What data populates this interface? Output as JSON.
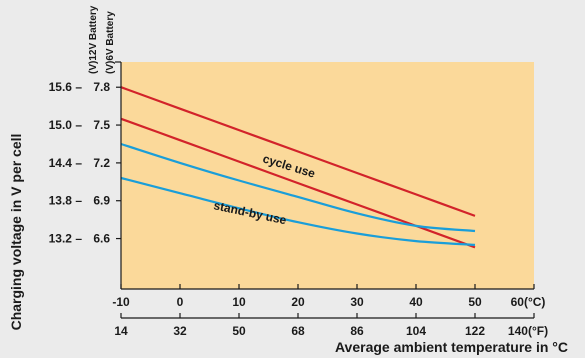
{
  "chart_data": {
    "type": "line",
    "xlabel": "Average ambient temperature in °C",
    "ylabel": "Charging voltage in V per cell",
    "y_scale_titles": [
      "(V)12V Battery",
      "(V)6V Battery"
    ],
    "x_celsius_ticks": [
      "-10",
      "0",
      "10",
      "20",
      "30",
      "40",
      "50",
      "60(°C)"
    ],
    "x_fahrenheit_ticks": [
      "14",
      "32",
      "50",
      "68",
      "86",
      "104",
      "122",
      "140(°F)"
    ],
    "y12_ticks": [
      "15.6 –",
      "15.0 –",
      "14.4 –",
      "13.8 –",
      "13.2 –"
    ],
    "y6_ticks": [
      "7.8",
      "7.5",
      "7.2",
      "6.9",
      "6.6"
    ],
    "xlim": [
      -10,
      60
    ],
    "ylim_6v": [
      6.2,
      8.0
    ],
    "annotations": [
      "cycle use",
      "stand-by use"
    ],
    "colors": {
      "plot_bg": "#fbd99a",
      "cycle": "#d2232a",
      "standby": "#1a9ed9",
      "axis": "#1a1a1a"
    },
    "series": [
      {
        "group": "cycle use",
        "color": "#d2232a",
        "x": [
          -10,
          0,
          10,
          20,
          30,
          40,
          50
        ],
        "y": [
          7.8,
          7.63,
          7.46,
          7.29,
          7.12,
          6.95,
          6.78
        ]
      },
      {
        "group": "cycle use",
        "color": "#d2232a",
        "x": [
          -10,
          0,
          10,
          20,
          30,
          40,
          50
        ],
        "y": [
          7.55,
          7.38,
          7.21,
          7.04,
          6.87,
          6.7,
          6.53
        ]
      },
      {
        "group": "stand-by use",
        "color": "#1a9ed9",
        "x": [
          -10,
          0,
          10,
          20,
          30,
          40,
          50
        ],
        "y": [
          7.35,
          7.2,
          7.06,
          6.93,
          6.8,
          6.7,
          6.66
        ]
      },
      {
        "group": "stand-by use",
        "color": "#1a9ed9",
        "x": [
          -10,
          0,
          10,
          20,
          30,
          40,
          50
        ],
        "y": [
          7.08,
          6.96,
          6.84,
          6.73,
          6.64,
          6.58,
          6.55
        ]
      }
    ]
  }
}
